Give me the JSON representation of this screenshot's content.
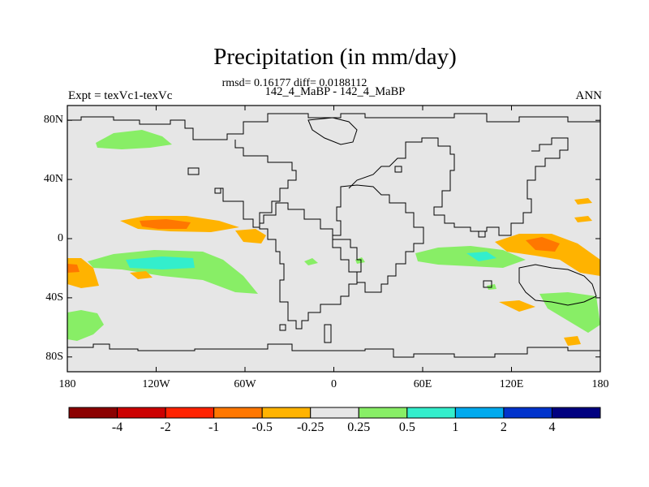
{
  "title": "Precipitation (in mm/day)",
  "stats": "rmsd= 0.16177 diff= 0.0188112",
  "subtitle": "142_4_MaBP - 142_4_MaBP",
  "expt": "Expt = texVc1-texVc",
  "season": "ANN",
  "y_ticks": [
    {
      "value": 80,
      "label": "80N"
    },
    {
      "value": 40,
      "label": "40N"
    },
    {
      "value": 0,
      "label": "0"
    },
    {
      "value": -40,
      "label": "40S"
    },
    {
      "value": -80,
      "label": "80S"
    }
  ],
  "x_ticks": [
    {
      "value": -180,
      "label": "180"
    },
    {
      "value": -120,
      "label": "120W"
    },
    {
      "value": -60,
      "label": "60W"
    },
    {
      "value": 0,
      "label": "0"
    },
    {
      "value": 60,
      "label": "60E"
    },
    {
      "value": 120,
      "label": "120E"
    },
    {
      "value": 180,
      "label": "180"
    }
  ],
  "colorbar": {
    "colors": [
      "#8b0000",
      "#cc0000",
      "#ff2200",
      "#ff7700",
      "#ffb300",
      "#e6e6e6",
      "#88ee66",
      "#33eecc",
      "#00aaee",
      "#0033cc",
      "#000080"
    ],
    "labels": [
      "-4",
      "-2",
      "-1",
      "-0.5",
      "-0.25",
      "0.25",
      "0.5",
      "1",
      "2",
      "4"
    ]
  },
  "chart_data": {
    "type": "heatmap",
    "title": "Precipitation (in mm/day)",
    "units": "mm/day",
    "lon_range": [
      -180,
      180
    ],
    "lat_range": [
      -90,
      90
    ],
    "levels": [
      -4,
      -2,
      -1,
      -0.5,
      -0.25,
      0.25,
      0.5,
      1,
      2,
      4
    ],
    "anomaly_regions": [
      {
        "lon": -150,
        "lat": 75,
        "level": "0.25 to 0.5"
      },
      {
        "lon": -110,
        "lat": 10,
        "level": "-1 to -0.5"
      },
      {
        "lon": -60,
        "lat": 2,
        "level": "-0.5 to -0.25"
      },
      {
        "lon": -120,
        "lat": -15,
        "level": "0.5 to 1"
      },
      {
        "lon": -175,
        "lat": -22,
        "level": "-0.5 to -0.25"
      },
      {
        "lon": -170,
        "lat": -55,
        "level": "0.25 to 0.5"
      },
      {
        "lon": 80,
        "lat": -10,
        "level": "0.5 to 1"
      },
      {
        "lon": 145,
        "lat": -2,
        "level": "-1 to -0.5"
      },
      {
        "lon": 160,
        "lat": -40,
        "level": "0.25 to 0.5"
      },
      {
        "lon": 120,
        "lat": -45,
        "level": "-0.5 to -0.25"
      }
    ]
  }
}
